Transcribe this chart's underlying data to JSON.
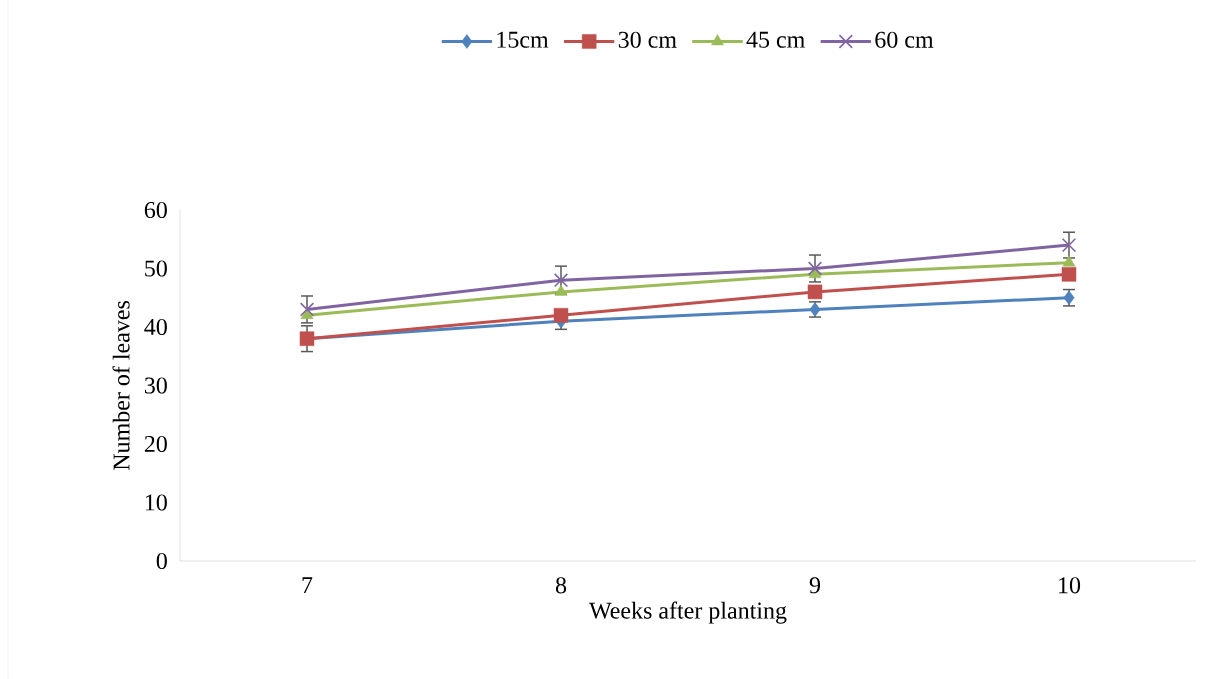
{
  "chart_data": {
    "type": "line",
    "xlabel": "Weeks after planting",
    "ylabel": "Number of leaves",
    "categories": [
      "7",
      "8",
      "9",
      "10"
    ],
    "series": [
      {
        "name": "15cm",
        "color": "#4f81bd",
        "marker": "diamond",
        "values": [
          38,
          41,
          43,
          45
        ],
        "errors": [
          2.2,
          1.4,
          1.3,
          1.4
        ]
      },
      {
        "name": "30 cm",
        "color": "#c0504d",
        "marker": "square",
        "values": [
          38,
          42,
          46,
          49
        ]
      },
      {
        "name": "45 cm",
        "color": "#9bbb59",
        "marker": "triangle",
        "values": [
          42,
          46,
          49,
          51
        ]
      },
      {
        "name": "60 cm",
        "color": "#8064a2",
        "marker": "cross",
        "values": [
          43,
          48,
          50,
          54
        ],
        "errors": [
          2.3,
          2.4,
          2.3,
          2.2
        ]
      }
    ],
    "ylim": [
      0,
      60
    ],
    "yticks": [
      0,
      10,
      20,
      30,
      40,
      50,
      60
    ],
    "grid": false,
    "legend": "top"
  }
}
